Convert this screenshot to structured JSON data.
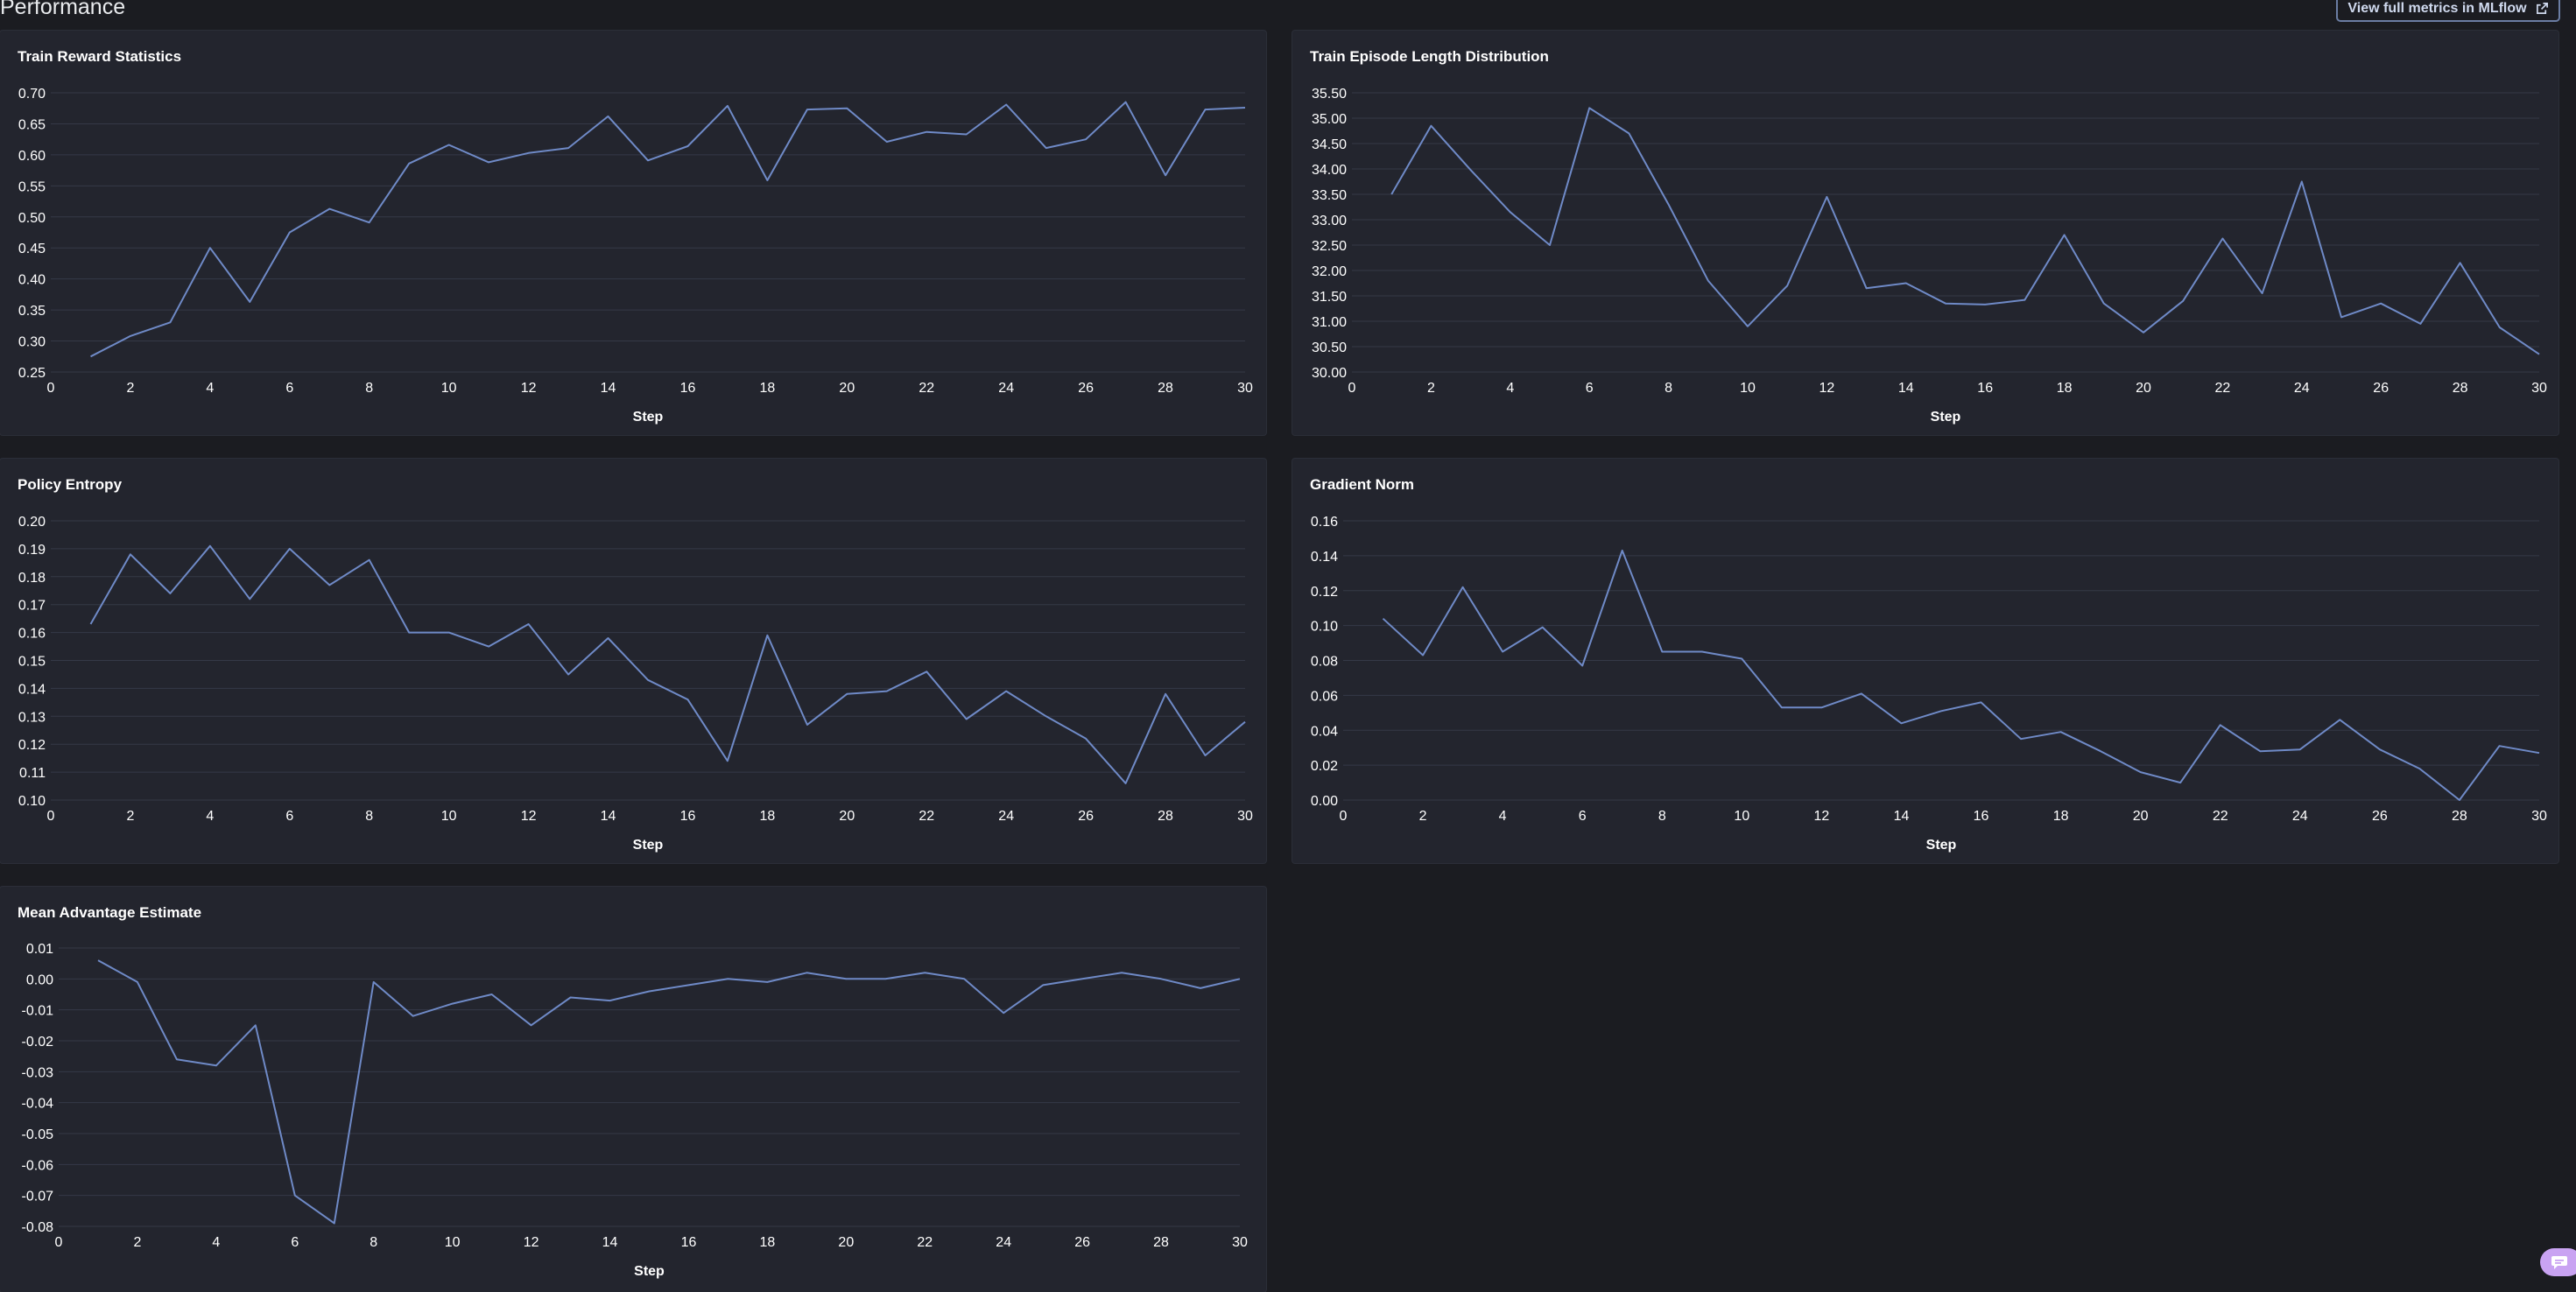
{
  "page": {
    "title": "Performance",
    "mlflow_button_label": "View full metrics in MLflow",
    "mlflow_icon": "external-link-icon",
    "chat_icon": "chat-bubble-icon"
  },
  "colors": {
    "background": "#1b1c21",
    "panel": "#23252e",
    "line": "#6f8ac7",
    "grid": "#353947"
  },
  "chart_data": [
    {
      "id": "train-reward",
      "type": "line",
      "title": "Train Reward Statistics",
      "xlabel": "Step",
      "ylabel": "",
      "xlim": [
        0,
        30
      ],
      "ylim": [
        0.25,
        0.7
      ],
      "xticks": [
        0,
        2,
        4,
        6,
        8,
        10,
        12,
        14,
        16,
        18,
        20,
        22,
        24,
        26,
        28,
        30
      ],
      "yticks": [
        0.25,
        0.3,
        0.35,
        0.4,
        0.45,
        0.5,
        0.55,
        0.6,
        0.65,
        0.7
      ],
      "ytick_decimals": 2,
      "grid": true,
      "x": [
        1,
        2,
        3,
        4,
        5,
        6,
        7,
        8,
        9,
        10,
        11,
        12,
        13,
        14,
        15,
        16,
        17,
        18,
        19,
        20,
        21,
        22,
        23,
        24,
        25,
        26,
        27,
        28,
        29,
        30
      ],
      "series": [
        {
          "values": [
            0.275,
            0.308,
            0.33,
            0.45,
            0.363,
            0.475,
            0.513,
            0.491,
            0.586,
            0.616,
            0.588,
            0.603,
            0.611,
            0.662,
            0.591,
            0.614,
            0.679,
            0.559,
            0.673,
            0.675,
            0.621,
            0.637,
            0.633,
            0.681,
            0.611,
            0.625,
            0.685,
            0.567,
            0.673,
            0.676
          ]
        }
      ]
    },
    {
      "id": "episode-length",
      "type": "line",
      "title": "Train Episode Length Distribution",
      "xlabel": "Step",
      "ylabel": "",
      "xlim": [
        0,
        30
      ],
      "ylim": [
        30.0,
        35.5
      ],
      "xticks": [
        0,
        2,
        4,
        6,
        8,
        10,
        12,
        14,
        16,
        18,
        20,
        22,
        24,
        26,
        28,
        30
      ],
      "yticks": [
        30.0,
        30.5,
        31.0,
        31.5,
        32.0,
        32.5,
        33.0,
        33.5,
        34.0,
        34.5,
        35.0,
        35.5
      ],
      "ytick_decimals": 2,
      "grid": true,
      "x": [
        1,
        2,
        3,
        4,
        5,
        6,
        7,
        8,
        9,
        10,
        11,
        12,
        13,
        14,
        15,
        16,
        17,
        18,
        19,
        20,
        21,
        22,
        23,
        24,
        25,
        26,
        27,
        28,
        29,
        30
      ],
      "series": [
        {
          "values": [
            33.5,
            34.85,
            33.98,
            33.15,
            32.5,
            35.2,
            34.7,
            33.3,
            31.8,
            30.9,
            31.7,
            33.45,
            31.65,
            31.75,
            31.35,
            31.33,
            31.42,
            32.7,
            31.35,
            30.78,
            31.4,
            32.63,
            31.55,
            33.75,
            31.08,
            31.35,
            30.95,
            32.15,
            30.88,
            30.35
          ]
        }
      ]
    },
    {
      "id": "policy-entropy",
      "type": "line",
      "title": "Policy Entropy",
      "xlabel": "Step",
      "ylabel": "",
      "xlim": [
        0,
        30
      ],
      "ylim": [
        0.1,
        0.2
      ],
      "xticks": [
        0,
        2,
        4,
        6,
        8,
        10,
        12,
        14,
        16,
        18,
        20,
        22,
        24,
        26,
        28,
        30
      ],
      "yticks": [
        0.1,
        0.11,
        0.12,
        0.13,
        0.14,
        0.15,
        0.16,
        0.17,
        0.18,
        0.19,
        0.2
      ],
      "ytick_decimals": 2,
      "grid": true,
      "x": [
        1,
        2,
        3,
        4,
        5,
        6,
        7,
        8,
        9,
        10,
        11,
        12,
        13,
        14,
        15,
        16,
        17,
        18,
        19,
        20,
        21,
        22,
        23,
        24,
        25,
        26,
        27,
        28,
        29,
        30
      ],
      "series": [
        {
          "values": [
            0.163,
            0.188,
            0.174,
            0.191,
            0.172,
            0.19,
            0.177,
            0.186,
            0.16,
            0.16,
            0.155,
            0.163,
            0.145,
            0.158,
            0.143,
            0.136,
            0.114,
            0.159,
            0.127,
            0.138,
            0.139,
            0.146,
            0.129,
            0.139,
            0.13,
            0.122,
            0.106,
            0.138,
            0.116,
            0.128
          ]
        }
      ]
    },
    {
      "id": "gradient-norm",
      "type": "line",
      "title": "Gradient Norm",
      "xlabel": "Step",
      "ylabel": "",
      "xlim": [
        0,
        30
      ],
      "ylim": [
        0.0,
        0.16
      ],
      "xticks": [
        0,
        2,
        4,
        6,
        8,
        10,
        12,
        14,
        16,
        18,
        20,
        22,
        24,
        26,
        28,
        30
      ],
      "yticks": [
        0.0,
        0.02,
        0.04,
        0.06,
        0.08,
        0.1,
        0.12,
        0.14,
        0.16
      ],
      "ytick_decimals": 2,
      "grid": true,
      "x": [
        1,
        2,
        3,
        4,
        5,
        6,
        7,
        8,
        9,
        10,
        11,
        12,
        13,
        14,
        15,
        16,
        17,
        18,
        19,
        20,
        21,
        22,
        23,
        24,
        25,
        26,
        27,
        28,
        29,
        30
      ],
      "series": [
        {
          "values": [
            0.104,
            0.083,
            0.122,
            0.085,
            0.099,
            0.077,
            0.143,
            0.085,
            0.085,
            0.081,
            0.053,
            0.053,
            0.061,
            0.044,
            0.051,
            0.056,
            0.035,
            0.039,
            0.028,
            0.016,
            0.01,
            0.043,
            0.028,
            0.029,
            0.046,
            0.029,
            0.018,
            0.0,
            0.031,
            0.027
          ]
        }
      ]
    },
    {
      "id": "mean-advantage",
      "type": "line",
      "title": "Mean Advantage Estimate",
      "xlabel": "Step",
      "ylabel": "",
      "xlim": [
        0,
        30
      ],
      "ylim": [
        -0.08,
        0.01
      ],
      "xticks": [
        0,
        2,
        4,
        6,
        8,
        10,
        12,
        14,
        16,
        18,
        20,
        22,
        24,
        26,
        28,
        30
      ],
      "yticks": [
        -0.08,
        -0.07,
        -0.06,
        -0.05,
        -0.04,
        -0.03,
        -0.02,
        -0.01,
        0.0,
        0.01
      ],
      "ytick_decimals": 2,
      "grid": true,
      "x": [
        1,
        2,
        3,
        4,
        5,
        6,
        7,
        8,
        9,
        10,
        11,
        12,
        13,
        14,
        15,
        16,
        17,
        18,
        19,
        20,
        21,
        22,
        23,
        24,
        25,
        26,
        27,
        28,
        29,
        30
      ],
      "series": [
        {
          "values": [
            0.006,
            -0.001,
            -0.026,
            -0.028,
            -0.015,
            -0.07,
            -0.079,
            -0.001,
            -0.012,
            -0.008,
            -0.005,
            -0.015,
            -0.006,
            -0.007,
            -0.004,
            -0.002,
            0.0,
            -0.001,
            0.002,
            0.0,
            0.0,
            0.002,
            0.0,
            -0.011,
            -0.002,
            0.0,
            0.002,
            0.0,
            -0.003,
            0.0
          ]
        }
      ]
    }
  ]
}
